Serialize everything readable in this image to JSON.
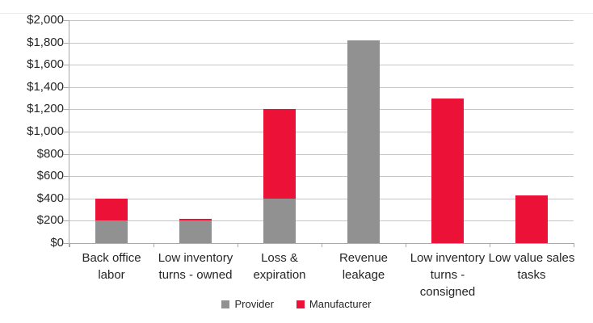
{
  "chart_data": {
    "type": "bar",
    "stacked": true,
    "title": "",
    "categories": [
      "Back office\nlabor",
      "Low inventory\nturns - owned",
      "Loss &\nexpiration",
      "Revenue\nleakage",
      "Low inventory\nturns -\nconsigned",
      "Low value sales\ntasks"
    ],
    "series": [
      {
        "name": "Provider",
        "color": "#919191",
        "values": [
          200,
          200,
          400,
          1820,
          0,
          0
        ]
      },
      {
        "name": "Manufacturer",
        "color": "#ec1237",
        "values": [
          200,
          20,
          800,
          0,
          1300,
          425
        ]
      }
    ],
    "totals": [
      400,
      220,
      1200,
      1820,
      1300,
      425
    ],
    "y_axis": {
      "min": 0,
      "max": 2000,
      "step": 200,
      "tick_labels": [
        "$2,000",
        "$1,800",
        "$1,600",
        "$1,400",
        "$1,200",
        "$1,000",
        "$800",
        "$600",
        "$400",
        "$200",
        "$0"
      ]
    },
    "legend": {
      "position": "bottom",
      "entries": [
        "Provider",
        "Manufacturer"
      ]
    },
    "grid": true
  },
  "colors": {
    "grid": "#c6c6c6",
    "axis": "#a8a8a8",
    "text": "#262626",
    "background": "#ffffff"
  }
}
